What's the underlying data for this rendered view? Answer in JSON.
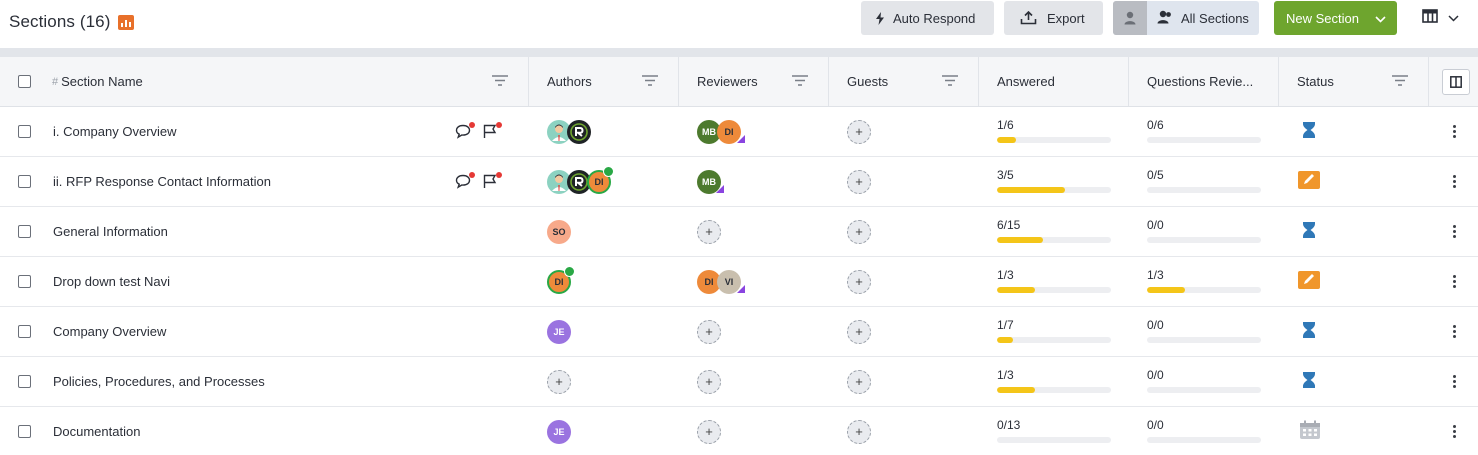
{
  "header": {
    "title": "Sections (16)",
    "buttons": {
      "auto_respond": "Auto Respond",
      "export": "Export",
      "all_sections": "All Sections",
      "new_section": "New Section"
    }
  },
  "table": {
    "columns": {
      "name_hash": "#",
      "name": "Section Name",
      "authors": "Authors",
      "reviewers": "Reviewers",
      "guests": "Guests",
      "answered": "Answered",
      "questions_reviewed": "Questions Revie...",
      "status": "Status"
    },
    "rows": [
      {
        "name": "i. Company Overview",
        "answered": "1/6",
        "answered_frac": 0.167,
        "reviewed": "0/6",
        "reviewed_frac": 0,
        "status": "hourglass",
        "comments": true
      },
      {
        "name": "ii. RFP Response Contact Information",
        "answered": "3/5",
        "answered_frac": 0.6,
        "reviewed": "0/5",
        "reviewed_frac": 0,
        "status": "pencil",
        "comments": true
      },
      {
        "name": "General Information",
        "answered": "6/15",
        "answered_frac": 0.4,
        "reviewed": "0/0",
        "reviewed_frac": 0,
        "status": "hourglass",
        "comments": false
      },
      {
        "name": "Drop down test Navi",
        "answered": "1/3",
        "answered_frac": 0.333,
        "reviewed": "1/3",
        "reviewed_frac": 0.333,
        "status": "pencil",
        "comments": false
      },
      {
        "name": "Company Overview",
        "answered": "1/7",
        "answered_frac": 0.143,
        "reviewed": "0/0",
        "reviewed_frac": 0,
        "status": "hourglass",
        "comments": false
      },
      {
        "name": "Policies, Procedures, and Processes",
        "answered": "1/3",
        "answered_frac": 0.333,
        "reviewed": "0/0",
        "reviewed_frac": 0,
        "status": "hourglass",
        "comments": false
      },
      {
        "name": "Documentation",
        "answered": "0/13",
        "answered_frac": 0,
        "reviewed": "0/0",
        "reviewed_frac": 0,
        "status": "calendar",
        "comments": false
      }
    ],
    "avatars": {
      "mb": "MB",
      "di": "DI",
      "vi": "VI",
      "so": "SO",
      "je": "JE",
      "add": "+"
    }
  },
  "colors": {
    "accent_green": "#6ea52e",
    "status_blue": "#2f78b7",
    "status_orange": "#f0962b",
    "progress_yellow": "#f4c518"
  }
}
